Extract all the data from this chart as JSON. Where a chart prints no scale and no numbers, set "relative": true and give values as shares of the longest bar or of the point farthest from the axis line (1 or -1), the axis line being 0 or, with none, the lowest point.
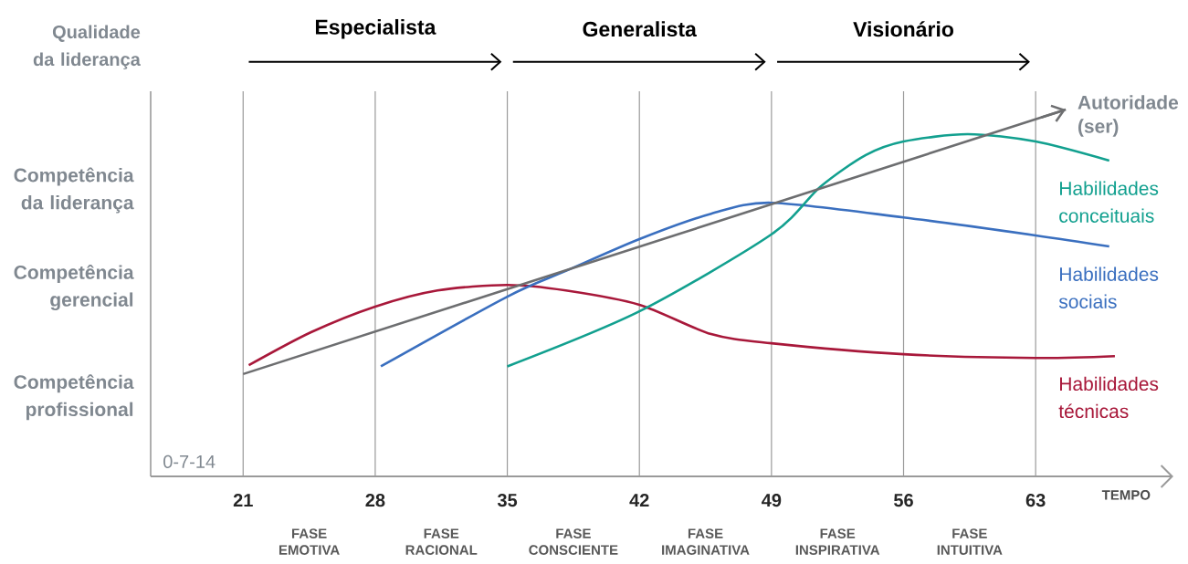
{
  "chart_data": {
    "type": "line",
    "relative": true,
    "ylabel": "Qualidade da liderança",
    "xlabel": "TEMPO",
    "xlim": [
      16.1,
      70.3
    ],
    "xticks": [
      21,
      28,
      35,
      42,
      49,
      56,
      63
    ],
    "grid": "x",
    "annotations": [
      "Especialista",
      "Generalista",
      "Visionário",
      "Competência profissional",
      "Competência gerencial",
      "Competência da liderança",
      "0-7-14",
      "FASE EMOTIVA",
      "FASE RACIONAL",
      "FASE CONSCIENTE",
      "FASE IMAGINATIVA",
      "FASE INSPIRATIVA",
      "FASE INTUITIVA"
    ],
    "series": [
      {
        "name": "Habilidades técnicas",
        "color": "#a8183a",
        "x": [
          21.3,
          24.6,
          28,
          31.3,
          35,
          38.1,
          42,
          45.8,
          49,
          56,
          63,
          67.2
        ],
        "values": [
          0.303,
          0.393,
          0.463,
          0.507,
          0.522,
          0.507,
          0.468,
          0.388,
          0.363,
          0.333,
          0.323,
          0.328
        ]
      },
      {
        "name": "Habilidades sociais",
        "color": "#3a6fbf",
        "x": [
          28.3,
          35,
          38.1,
          42,
          45.8,
          49,
          56,
          63,
          66.9
        ],
        "values": [
          0.3,
          0.49,
          0.56,
          0.647,
          0.716,
          0.746,
          0.706,
          0.657,
          0.627
        ]
      },
      {
        "name": "Habilidades conceituais",
        "color": "#12a08f",
        "x": [
          35,
          42,
          49,
          51.6,
          54,
          56,
          59.4,
          63,
          66.9
        ],
        "values": [
          0.3,
          0.45,
          0.66,
          0.79,
          0.876,
          0.913,
          0.933,
          0.913,
          0.861
        ]
      },
      {
        "name": "Autoridade (ser)",
        "color": "#6d6e70",
        "x": [
          21,
          64.6
        ],
        "values": [
          0.279,
          1.0
        ]
      }
    ]
  }
}
